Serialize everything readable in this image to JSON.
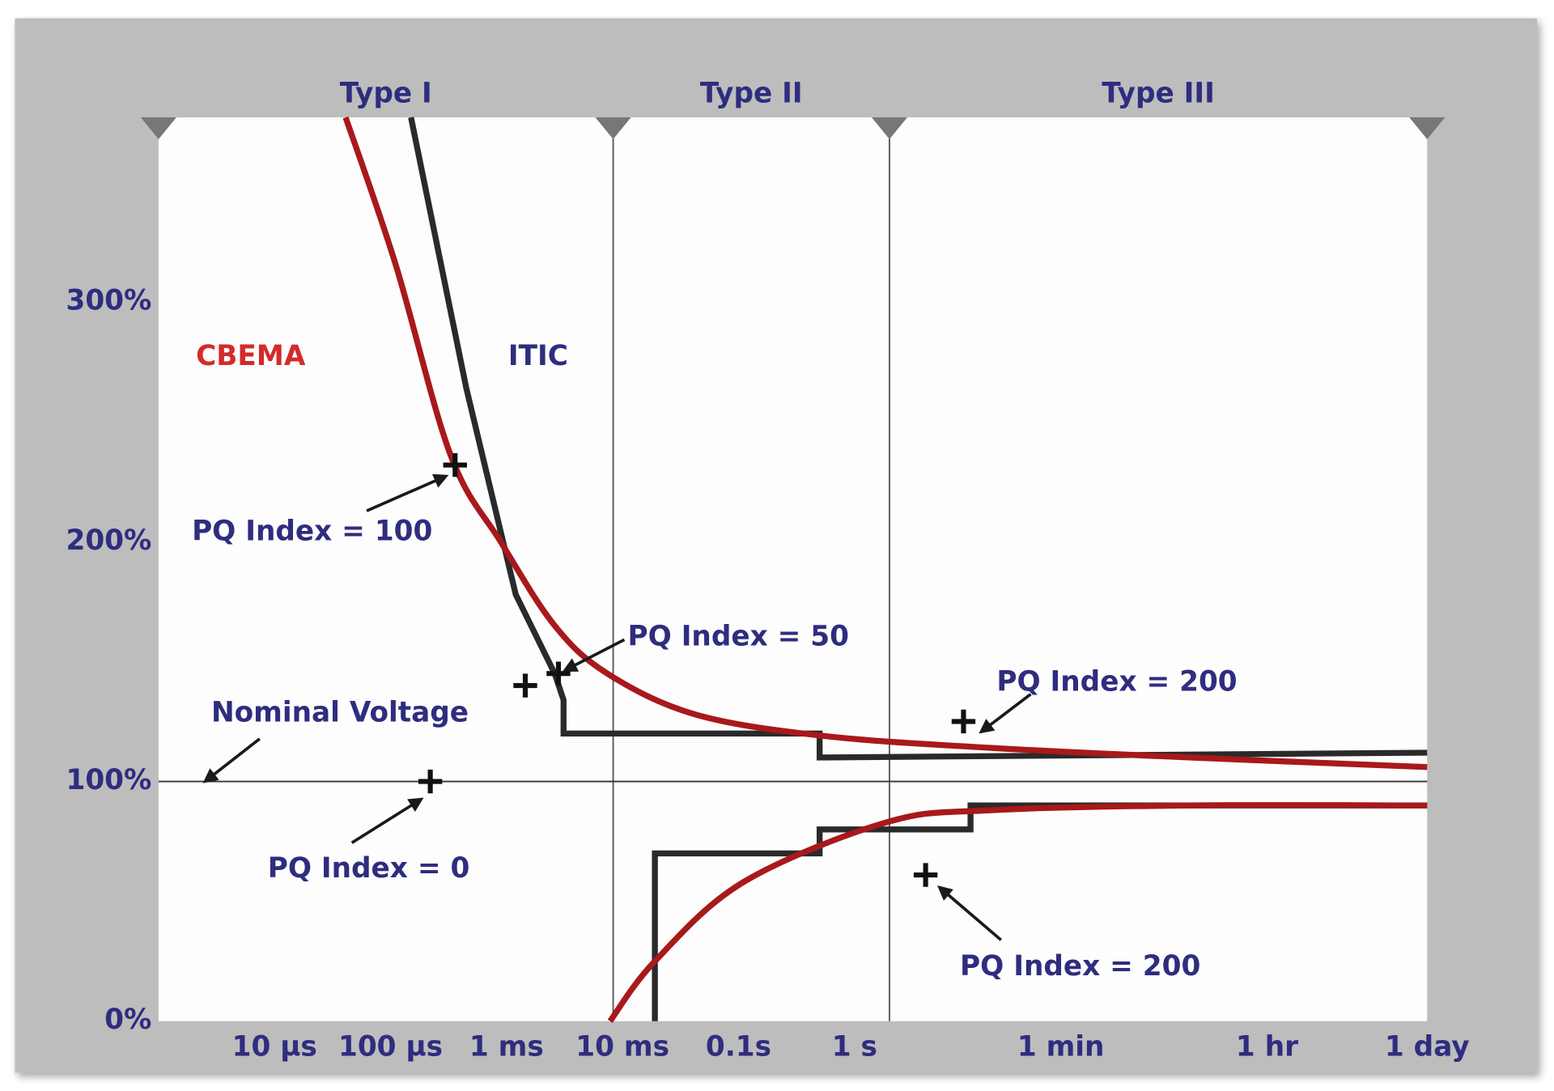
{
  "chart_data": {
    "type": "line",
    "x_scale": "log",
    "xlim": [
      1e-06,
      86400
    ],
    "ylim": [
      0,
      377
    ],
    "xticks": [
      {
        "value": 1e-05,
        "label": "10 µs"
      },
      {
        "value": 0.0001,
        "label": "100 µs"
      },
      {
        "value": 0.001,
        "label": "1 ms"
      },
      {
        "value": 0.01,
        "label": "10 ms"
      },
      {
        "value": 0.1,
        "label": "0.1s"
      },
      {
        "value": 1,
        "label": "1 s"
      },
      {
        "value": 60,
        "label": "1 min"
      },
      {
        "value": 3600,
        "label": "1 hr"
      },
      {
        "value": 86400,
        "label": "1 day"
      }
    ],
    "yticks": [
      {
        "value": 0,
        "label": "0%"
      },
      {
        "value": 100,
        "label": "100%"
      },
      {
        "value": 200,
        "label": "200%"
      },
      {
        "value": 300,
        "label": "300%"
      }
    ],
    "regions": [
      {
        "label": "Type I",
        "start": 1e-06,
        "end": 0.0083
      },
      {
        "label": "Type II",
        "start": 0.0083,
        "end": 2
      },
      {
        "label": "Type III",
        "start": 2,
        "end": 86400
      }
    ],
    "reference_line": {
      "value": 100,
      "label": "Nominal Voltage"
    },
    "series": [
      {
        "name": "ITIC",
        "color": "#2a2a2a",
        "label_color": "#2e2d7f",
        "smooth": false,
        "x": [
          0.00015,
          0.00045,
          0.0012,
          0.0026,
          0.0031,
          0.0031,
          0.5,
          0.5,
          86400,
          null,
          0.019,
          0.019,
          0.5,
          0.5,
          10,
          10,
          86400
        ],
        "values": [
          377,
          264,
          178,
          145,
          134,
          120,
          120,
          110,
          112,
          null,
          0,
          70,
          70,
          80,
          80,
          90,
          90
        ]
      },
      {
        "name": "CBEMA",
        "color": "#a8191b",
        "label_color": "#d42a2a",
        "smooth": true,
        "x": [
          4.1e-05,
          0.00011,
          0.00033,
          0.00089,
          0.0026,
          0.0074,
          0.042,
          0.54,
          15,
          780,
          86400,
          null,
          0.0078,
          0.019,
          0.11,
          1.9,
          15,
          780,
          86400
        ],
        "values": [
          377,
          316,
          236,
          200,
          165,
          145,
          128,
          119,
          114,
          110,
          106,
          null,
          0,
          25,
          58,
          83,
          88,
          90,
          90
        ]
      }
    ],
    "points": [
      {
        "label": "PQ Index = 100",
        "x": 0.00036,
        "value": 232
      },
      {
        "label": null,
        "x": 0.00145,
        "value": 140
      },
      {
        "label": "PQ Index = 50",
        "x": 0.0028,
        "value": 145
      },
      {
        "label": "PQ Index = 0",
        "x": 0.00022,
        "value": 100
      },
      {
        "label": "PQ Index = 200",
        "x": 8.7,
        "value": 125
      },
      {
        "label": "PQ Index = 200",
        "x": 4.1,
        "value": 61
      }
    ]
  }
}
